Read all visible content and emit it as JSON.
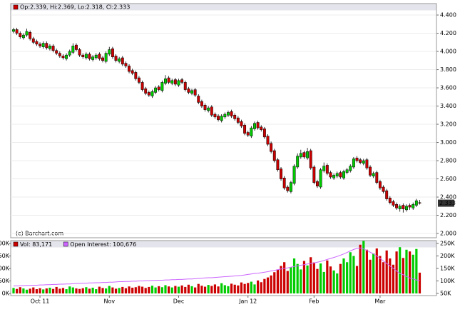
{
  "chart_data": [
    {
      "type": "candlestick",
      "legend": "Op:2.339, Hi:2.369, Lo:2.318, Cl:2.333",
      "credit": "(c) Barchart.com",
      "last_label": "2.333",
      "last_value": 2.333,
      "up_color": "#00cc00",
      "down_color": "#cc0000",
      "categories": [
        null,
        null,
        null,
        null,
        null,
        null,
        null,
        null,
        "Oct 11",
        null,
        null,
        null,
        null,
        null,
        null,
        null,
        null,
        null,
        null,
        null,
        null,
        null,
        null,
        null,
        null,
        null,
        null,
        null,
        null,
        "Nov",
        null,
        null,
        null,
        null,
        null,
        null,
        null,
        null,
        null,
        null,
        null,
        null,
        null,
        null,
        null,
        null,
        null,
        null,
        null,
        null,
        "Dec",
        null,
        null,
        null,
        null,
        null,
        null,
        null,
        null,
        null,
        null,
        null,
        null,
        null,
        null,
        null,
        null,
        null,
        null,
        null,
        null,
        "Jan 12",
        null,
        null,
        null,
        null,
        null,
        null,
        null,
        null,
        null,
        null,
        null,
        null,
        null,
        null,
        null,
        null,
        null,
        null,
        null,
        "Feb",
        null,
        null,
        null,
        null,
        null,
        null,
        null,
        null,
        null,
        null,
        null,
        null,
        null,
        null,
        null,
        null,
        null,
        null,
        null,
        "Mar",
        null,
        null,
        null,
        null,
        null,
        null,
        null,
        null,
        null,
        null,
        null,
        null
      ],
      "open": [
        4.22,
        4.24,
        4.2,
        4.15,
        4.18,
        4.21,
        4.14,
        4.11,
        4.08,
        4.05,
        4.09,
        4.03,
        4.06,
        4.01,
        3.98,
        3.95,
        3.92,
        3.96,
        3.99,
        4.07,
        4.02,
        3.96,
        3.93,
        3.97,
        3.91,
        3.93,
        3.97,
        3.93,
        3.89,
        3.97,
        4.03,
        3.95,
        3.89,
        3.93,
        3.87,
        3.84,
        3.79,
        3.77,
        3.71,
        3.66,
        3.59,
        3.55,
        3.51,
        3.55,
        3.61,
        3.57,
        3.65,
        3.71,
        3.65,
        3.69,
        3.63,
        3.69,
        3.66,
        3.59,
        3.54,
        3.58,
        3.51,
        3.45,
        3.41,
        3.35,
        3.39,
        3.31,
        3.29,
        3.24,
        3.28,
        3.3,
        3.34,
        3.3,
        3.27,
        3.23,
        3.19,
        3.11,
        3.07,
        3.15,
        3.22,
        3.17,
        3.15,
        3.07,
        2.99,
        2.91,
        2.81,
        2.71,
        2.61,
        2.51,
        2.46,
        2.55,
        2.73,
        2.84,
        2.89,
        2.83,
        2.91,
        2.73,
        2.57,
        2.51,
        2.69,
        2.75,
        2.67,
        2.61,
        2.63,
        2.67,
        2.61,
        2.67,
        2.69,
        2.73,
        2.83,
        2.81,
        2.77,
        2.81,
        2.73,
        2.63,
        2.67,
        2.57,
        2.51,
        2.47,
        2.39,
        2.35,
        2.32,
        2.27,
        2.31,
        2.26,
        2.31,
        2.28,
        2.31,
        2.339
      ],
      "high": [
        4.26,
        4.26,
        4.22,
        4.2,
        4.25,
        4.23,
        4.16,
        4.13,
        4.1,
        4.11,
        4.11,
        4.08,
        4.08,
        4.03,
        4.0,
        3.97,
        3.98,
        4.02,
        4.09,
        4.09,
        4.04,
        3.98,
        3.99,
        3.99,
        3.96,
        3.98,
        3.99,
        3.95,
        4.0,
        4.05,
        4.05,
        3.97,
        3.94,
        3.95,
        3.89,
        3.86,
        3.81,
        3.79,
        3.73,
        3.68,
        3.61,
        3.57,
        3.58,
        3.62,
        3.63,
        3.68,
        3.74,
        3.73,
        3.7,
        3.71,
        3.7,
        3.71,
        3.68,
        3.61,
        3.59,
        3.6,
        3.53,
        3.47,
        3.43,
        3.4,
        3.41,
        3.33,
        3.31,
        3.31,
        3.33,
        3.35,
        3.36,
        3.32,
        3.29,
        3.25,
        3.21,
        3.13,
        3.18,
        3.23,
        3.24,
        3.19,
        3.17,
        3.09,
        3.01,
        2.93,
        2.83,
        2.73,
        2.63,
        2.53,
        2.58,
        2.76,
        2.88,
        2.92,
        2.91,
        2.94,
        2.93,
        2.75,
        2.59,
        2.72,
        2.78,
        2.77,
        2.69,
        2.66,
        2.68,
        2.69,
        2.7,
        2.72,
        2.76,
        2.84,
        2.85,
        2.83,
        2.82,
        2.83,
        2.75,
        2.68,
        2.69,
        2.59,
        2.53,
        2.49,
        2.41,
        2.37,
        2.34,
        2.32,
        2.33,
        2.32,
        2.33,
        2.34,
        2.38,
        2.369
      ],
      "low": [
        4.2,
        4.18,
        4.14,
        4.13,
        4.16,
        4.12,
        4.08,
        4.06,
        4.04,
        4.03,
        4.02,
        4.01,
        3.99,
        3.96,
        3.93,
        3.91,
        3.9,
        3.94,
        3.97,
        4.0,
        3.94,
        3.92,
        3.91,
        3.9,
        3.89,
        3.91,
        3.9,
        3.88,
        3.87,
        3.95,
        3.92,
        3.88,
        3.87,
        3.84,
        3.82,
        3.76,
        3.74,
        3.68,
        3.64,
        3.56,
        3.52,
        3.5,
        3.49,
        3.53,
        3.56,
        3.55,
        3.63,
        3.64,
        3.63,
        3.62,
        3.61,
        3.64,
        3.56,
        3.53,
        3.52,
        3.5,
        3.42,
        3.38,
        3.34,
        3.33,
        3.28,
        3.26,
        3.23,
        3.22,
        3.26,
        3.28,
        3.27,
        3.24,
        3.2,
        3.16,
        3.08,
        3.06,
        3.05,
        3.13,
        3.14,
        3.12,
        3.04,
        2.96,
        2.88,
        2.78,
        2.68,
        2.58,
        2.48,
        2.45,
        2.44,
        2.53,
        2.71,
        2.82,
        2.82,
        2.81,
        2.7,
        2.54,
        2.5,
        2.49,
        2.67,
        2.64,
        2.6,
        2.59,
        2.61,
        2.6,
        2.59,
        2.65,
        2.67,
        2.71,
        2.78,
        2.76,
        2.75,
        2.7,
        2.62,
        2.61,
        2.54,
        2.48,
        2.44,
        2.36,
        2.32,
        2.29,
        2.26,
        2.24,
        2.23,
        2.24,
        2.26,
        2.26,
        2.29,
        2.318
      ],
      "close": [
        4.24,
        4.2,
        4.16,
        4.18,
        4.22,
        4.14,
        4.1,
        4.08,
        4.06,
        4.09,
        4.04,
        4.06,
        4.01,
        3.98,
        3.95,
        3.93,
        3.96,
        4.0,
        4.06,
        4.02,
        3.96,
        3.94,
        3.97,
        3.92,
        3.94,
        3.96,
        3.92,
        3.9,
        3.98,
        4.02,
        3.94,
        3.9,
        3.92,
        3.86,
        3.84,
        3.78,
        3.76,
        3.7,
        3.66,
        3.58,
        3.54,
        3.52,
        3.56,
        3.6,
        3.58,
        3.66,
        3.7,
        3.66,
        3.68,
        3.64,
        3.68,
        3.66,
        3.58,
        3.55,
        3.57,
        3.52,
        3.44,
        3.4,
        3.36,
        3.38,
        3.3,
        3.28,
        3.25,
        3.29,
        3.31,
        3.33,
        3.29,
        3.26,
        3.22,
        3.18,
        3.1,
        3.08,
        3.16,
        3.21,
        3.16,
        3.14,
        3.06,
        2.98,
        2.9,
        2.8,
        2.7,
        2.6,
        2.5,
        2.47,
        2.56,
        2.74,
        2.85,
        2.88,
        2.84,
        2.9,
        2.72,
        2.56,
        2.52,
        2.7,
        2.74,
        2.66,
        2.62,
        2.64,
        2.66,
        2.62,
        2.68,
        2.7,
        2.74,
        2.82,
        2.8,
        2.78,
        2.8,
        2.72,
        2.64,
        2.66,
        2.56,
        2.5,
        2.46,
        2.38,
        2.34,
        2.31,
        2.28,
        2.3,
        2.27,
        2.3,
        2.29,
        2.32,
        2.36,
        2.333
      ],
      "ylim": [
        1.95,
        4.46
      ],
      "yticks": [
        {
          "value": 2.0,
          "label": "2.000"
        },
        {
          "value": 2.2,
          "label": "2.200"
        },
        {
          "value": 2.4,
          "label": "2.400"
        },
        {
          "value": 2.6,
          "label": "2.600"
        },
        {
          "value": 2.8,
          "label": "2.800"
        },
        {
          "value": 3.0,
          "label": "3.000"
        },
        {
          "value": 3.2,
          "label": "3.200"
        },
        {
          "value": 3.4,
          "label": "3.400"
        },
        {
          "value": 3.6,
          "label": "3.600"
        },
        {
          "value": 3.8,
          "label": "3.800"
        },
        {
          "value": 4.0,
          "label": "4.000"
        },
        {
          "value": 4.2,
          "label": "4.200"
        },
        {
          "value": 4.4,
          "label": "4.400"
        }
      ],
      "grid": true
    },
    {
      "type": "bar",
      "series": [
        {
          "name": "Vol: 83,171",
          "color": "#cc0000",
          "values": [
            22000,
            18000,
            25000,
            20000,
            15000,
            19000,
            24000,
            17000,
            21000,
            16000,
            20000,
            23000,
            18000,
            26000,
            19000,
            22000,
            17000,
            28000,
            24000,
            20000,
            18000,
            21000,
            25000,
            19000,
            23000,
            17000,
            27000,
            22000,
            20000,
            30000,
            24000,
            19000,
            22000,
            26000,
            21000,
            28000,
            23000,
            25000,
            30000,
            27000,
            22000,
            26000,
            31000,
            24000,
            29000,
            25000,
            33000,
            28000,
            24000,
            30000,
            27000,
            32000,
            26000,
            35000,
            29000,
            24000,
            38000,
            31000,
            27000,
            34000,
            30000,
            36000,
            28000,
            41000,
            33000,
            29000,
            39000,
            35000,
            32000,
            44000,
            38000,
            42000,
            47000,
            36000,
            52000,
            45000,
            58000,
            64000,
            72000,
            85000,
            96000,
            110000,
            125000,
            90000,
            105000,
            140000,
            118000,
            96000,
            130000,
            112000,
            145000,
            124000,
            98000,
            120000,
            86000,
            132000,
            108000,
            92000,
            80000,
            118000,
            140000,
            125000,
            165000,
            150000,
            110000,
            195000,
            210000,
            175000,
            135000,
            160000,
            180000,
            150000,
            125000,
            172000,
            140000,
            115000,
            168000,
            185000,
            142000,
            175000,
            168000,
            155000,
            178000,
            83171
          ]
        },
        {
          "name": "Open Interest: 100,676",
          "color": "#cc66ff",
          "axis": "y2",
          "values": [
            80000,
            80000,
            81000,
            81000,
            82000,
            82000,
            83000,
            83000,
            84000,
            84000,
            85000,
            85000,
            86000,
            86000,
            87000,
            87000,
            88000,
            88000,
            89000,
            90000,
            90000,
            91000,
            91000,
            92000,
            92000,
            93000,
            93000,
            94000,
            94000,
            95000,
            95000,
            96000,
            97000,
            97000,
            98000,
            98000,
            99000,
            99000,
            100000,
            100000,
            101000,
            101000,
            102000,
            102000,
            103000,
            103000,
            104000,
            104000,
            105000,
            105000,
            106000,
            106000,
            107000,
            108000,
            108000,
            109000,
            110000,
            111000,
            112000,
            113000,
            113000,
            114000,
            115000,
            116000,
            117000,
            118000,
            119000,
            120000,
            121000,
            122000,
            124000,
            126000,
            128000,
            130000,
            131000,
            133000,
            135000,
            137000,
            140000,
            142000,
            145000,
            148000,
            150000,
            152000,
            155000,
            158000,
            160000,
            163000,
            165000,
            168000,
            170000,
            172000,
            175000,
            178000,
            182000,
            186000,
            190000,
            194000,
            198000,
            203000,
            208000,
            214000,
            220000,
            226000,
            230000,
            232000,
            228000,
            222000,
            215000,
            208000,
            200000,
            190000,
            180000,
            170000,
            160000,
            150000,
            140000,
            130000,
            125000,
            118000,
            112000,
            108000,
            104000,
            100676
          ]
        }
      ],
      "ylim": [
        0,
        210000
      ],
      "yticks": [
        {
          "value": 0,
          "label": "0K"
        },
        {
          "value": 50000,
          "label": "50K"
        },
        {
          "value": 100000,
          "label": "100K"
        },
        {
          "value": 150000,
          "label": "150K"
        },
        {
          "value": 200000,
          "label": "200K"
        }
      ],
      "y2lim": [
        50000,
        260000
      ],
      "y2ticks": [
        {
          "value": 50000,
          "label": "50K"
        },
        {
          "value": 100000,
          "label": "100K"
        },
        {
          "value": 150000,
          "label": "150K"
        },
        {
          "value": 200000,
          "label": "200K"
        },
        {
          "value": 250000,
          "label": "250K"
        }
      ]
    }
  ]
}
